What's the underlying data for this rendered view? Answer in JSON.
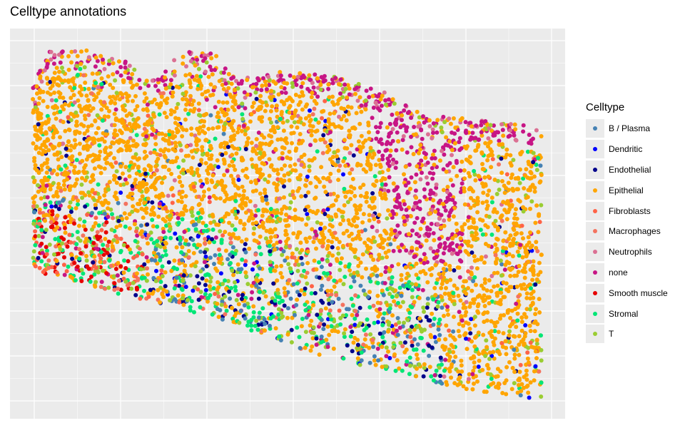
{
  "chart_data": {
    "type": "scatter",
    "title": "Celltype annotations",
    "xlabel": "",
    "ylabel": "",
    "grid": true,
    "panel_background": "#ebebeb",
    "legend_position": "right",
    "legend": {
      "title": "Celltype",
      "entries": [
        {
          "name": "B / Plasma",
          "color": "#4682b4",
          "approx_share": 0.04
        },
        {
          "name": "Dendritic",
          "color": "#0000ff",
          "approx_share": 0.01
        },
        {
          "name": "Endothelial",
          "color": "#00008b",
          "approx_share": 0.03
        },
        {
          "name": "Epithelial",
          "color": "#ffa500",
          "approx_share": 0.55
        },
        {
          "name": "Fibroblasts",
          "color": "#ff6347",
          "approx_share": 0.03
        },
        {
          "name": "Macrophages",
          "color": "#f4735f",
          "approx_share": 0.03
        },
        {
          "name": "Neutrophils",
          "color": "#db7093",
          "approx_share": 0.03
        },
        {
          "name": "none",
          "color": "#c71585",
          "approx_share": 0.09
        },
        {
          "name": "Smooth muscle",
          "color": "#e60000",
          "approx_share": 0.02
        },
        {
          "name": "Stromal",
          "color": "#00e676",
          "approx_share": 0.09
        },
        {
          "name": "T",
          "color": "#9acd32",
          "approx_share": 0.08
        }
      ]
    }
  }
}
